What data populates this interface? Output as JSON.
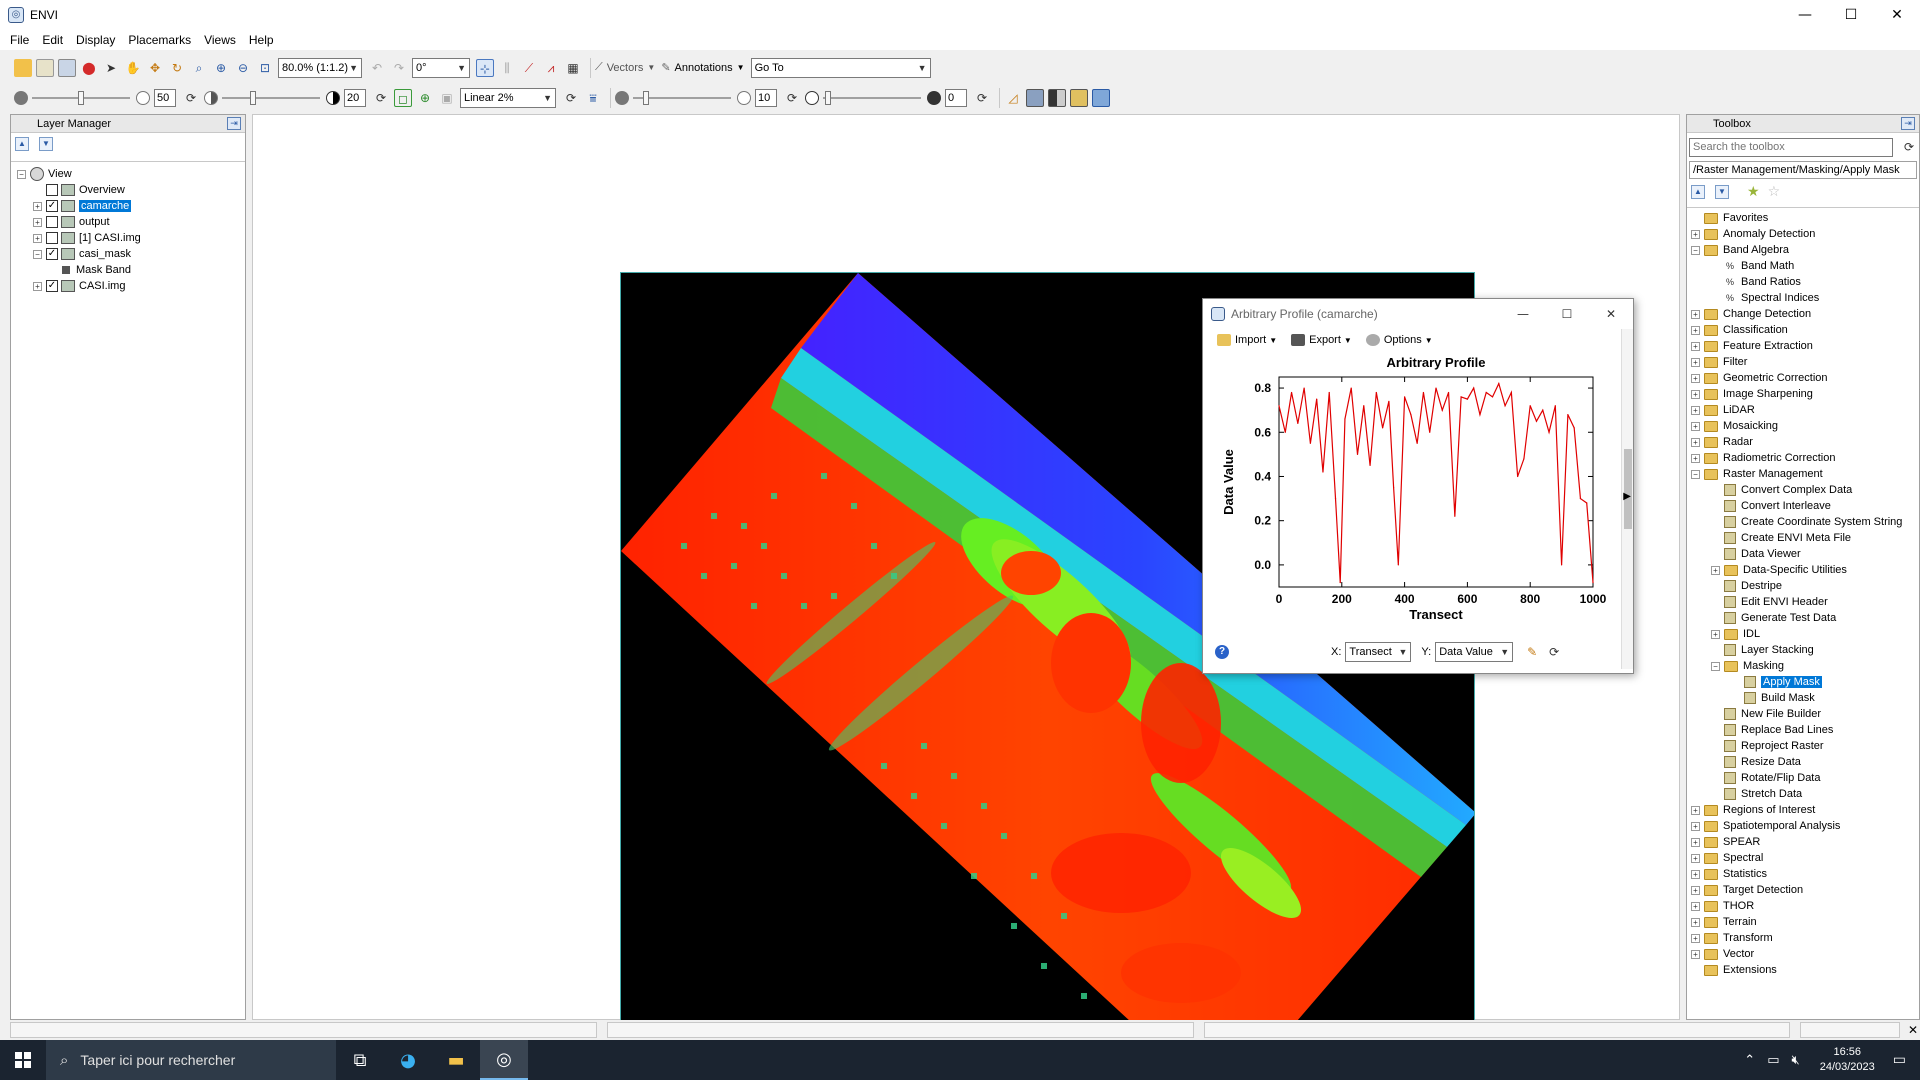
{
  "window": {
    "title": "ENVI",
    "minimize": "—",
    "maximize": "☐",
    "close": "✕"
  },
  "menu": [
    "File",
    "Edit",
    "Display",
    "Placemarks",
    "Views",
    "Help"
  ],
  "toolbar1": {
    "zoom_value": "80.0% (1:1.2)",
    "rotation_value": "0°",
    "vectors_label": "Vectors",
    "annotations_label": "Annotations",
    "goto_value": "Go To"
  },
  "toolbar2": {
    "brightness": "50",
    "contrast": "20",
    "stretch_value": "Linear 2%",
    "sharpen": "10",
    "transparency": "0"
  },
  "layer_manager": {
    "title": "Layer Manager",
    "items": [
      {
        "label": "View",
        "checked": null,
        "expander": "−",
        "indent": 0
      },
      {
        "label": "Overview",
        "checked": false,
        "expander": "",
        "indent": 1
      },
      {
        "label": "camarche",
        "checked": true,
        "expander": "+",
        "indent": 1,
        "selected": true
      },
      {
        "label": "output",
        "checked": false,
        "expander": "+",
        "indent": 1
      },
      {
        "label": "[1] CASI.img",
        "checked": false,
        "expander": "+",
        "indent": 1
      },
      {
        "label": "casi_mask",
        "checked": true,
        "expander": "−",
        "indent": 1
      },
      {
        "label": "Mask Band",
        "checked": null,
        "expander": "",
        "indent": 2
      },
      {
        "label": "CASI.img",
        "checked": true,
        "expander": "+",
        "indent": 1
      }
    ]
  },
  "profile_window": {
    "title": "Arbitrary Profile  (camarche)",
    "menu": {
      "import": "Import",
      "export": "Export",
      "options": "Options"
    },
    "x_label": "X:",
    "x_select": "Transect",
    "y_label": "Y:",
    "y_select": "Data Value",
    "help": "?"
  },
  "chart_data": {
    "type": "line",
    "title": "Arbitrary Profile",
    "xlabel": "Transect",
    "ylabel": "Data Value",
    "xlim": [
      0,
      1000
    ],
    "ylim": [
      -0.1,
      0.85
    ],
    "xticks": [
      "0",
      "200",
      "400",
      "600",
      "800",
      "1000"
    ],
    "yticks": [
      "0.0",
      "0.2",
      "0.4",
      "0.6",
      "0.8"
    ],
    "color": "#e00000",
    "x": [
      0,
      20,
      40,
      60,
      80,
      100,
      120,
      140,
      160,
      180,
      195,
      210,
      230,
      250,
      270,
      290,
      310,
      330,
      350,
      365,
      380,
      400,
      420,
      440,
      460,
      480,
      500,
      520,
      540,
      560,
      580,
      600,
      620,
      640,
      660,
      680,
      700,
      720,
      740,
      760,
      780,
      800,
      820,
      840,
      860,
      880,
      900,
      920,
      940,
      960,
      980,
      1000
    ],
    "y": [
      0.72,
      0.6,
      0.78,
      0.64,
      0.8,
      0.55,
      0.75,
      0.42,
      0.78,
      0.3,
      -0.08,
      0.66,
      0.8,
      0.5,
      0.72,
      0.45,
      0.78,
      0.62,
      0.74,
      0.35,
      0.0,
      0.76,
      0.68,
      0.55,
      0.78,
      0.6,
      0.8,
      0.7,
      0.78,
      0.22,
      0.76,
      0.75,
      0.8,
      0.68,
      0.78,
      0.76,
      0.82,
      0.72,
      0.78,
      0.4,
      0.48,
      0.72,
      0.65,
      0.7,
      0.6,
      0.72,
      0.0,
      0.68,
      0.62,
      0.3,
      0.28,
      -0.08
    ]
  },
  "toolbox": {
    "title": "Toolbox",
    "search_placeholder": "Search the toolbox",
    "path": "/Raster Management/Masking/Apply Mask",
    "items": [
      {
        "label": "Favorites",
        "type": "folder",
        "indent": 0,
        "expander": ""
      },
      {
        "label": "Anomaly Detection",
        "type": "folder",
        "indent": 0,
        "expander": "+"
      },
      {
        "label": "Band Algebra",
        "type": "folder",
        "indent": 0,
        "expander": "−"
      },
      {
        "label": "Band Math",
        "type": "bm",
        "indent": 1,
        "expander": ""
      },
      {
        "label": "Band Ratios",
        "type": "bm",
        "indent": 1,
        "expander": ""
      },
      {
        "label": "Spectral Indices",
        "type": "bm",
        "indent": 1,
        "expander": ""
      },
      {
        "label": "Change Detection",
        "type": "folder",
        "indent": 0,
        "expander": "+"
      },
      {
        "label": "Classification",
        "type": "folder",
        "indent": 0,
        "expander": "+"
      },
      {
        "label": "Feature Extraction",
        "type": "folder",
        "indent": 0,
        "expander": "+"
      },
      {
        "label": "Filter",
        "type": "folder",
        "indent": 0,
        "expander": "+"
      },
      {
        "label": "Geometric Correction",
        "type": "folder",
        "indent": 0,
        "expander": "+"
      },
      {
        "label": "Image Sharpening",
        "type": "folder",
        "indent": 0,
        "expander": "+"
      },
      {
        "label": "LiDAR",
        "type": "folder",
        "indent": 0,
        "expander": "+"
      },
      {
        "label": "Mosaicking",
        "type": "folder",
        "indent": 0,
        "expander": "+"
      },
      {
        "label": "Radar",
        "type": "folder",
        "indent": 0,
        "expander": "+"
      },
      {
        "label": "Radiometric Correction",
        "type": "folder",
        "indent": 0,
        "expander": "+"
      },
      {
        "label": "Raster Management",
        "type": "folder",
        "indent": 0,
        "expander": "−"
      },
      {
        "label": "Convert Complex Data",
        "type": "tool",
        "indent": 1,
        "expander": ""
      },
      {
        "label": "Convert Interleave",
        "type": "tool",
        "indent": 1,
        "expander": ""
      },
      {
        "label": "Create Coordinate System String",
        "type": "tool",
        "indent": 1,
        "expander": ""
      },
      {
        "label": "Create ENVI Meta File",
        "type": "tool",
        "indent": 1,
        "expander": ""
      },
      {
        "label": "Data Viewer",
        "type": "tool",
        "indent": 1,
        "expander": ""
      },
      {
        "label": "Data-Specific Utilities",
        "type": "folder",
        "indent": 1,
        "expander": "+"
      },
      {
        "label": "Destripe",
        "type": "tool",
        "indent": 1,
        "expander": ""
      },
      {
        "label": "Edit ENVI Header",
        "type": "tool",
        "indent": 1,
        "expander": ""
      },
      {
        "label": "Generate Test Data",
        "type": "tool",
        "indent": 1,
        "expander": ""
      },
      {
        "label": "IDL",
        "type": "folder",
        "indent": 1,
        "expander": "+"
      },
      {
        "label": "Layer Stacking",
        "type": "tool",
        "indent": 1,
        "expander": ""
      },
      {
        "label": "Masking",
        "type": "folder",
        "indent": 1,
        "expander": "−"
      },
      {
        "label": "Apply Mask",
        "type": "tool",
        "indent": 2,
        "expander": "",
        "selected": true
      },
      {
        "label": "Build Mask",
        "type": "tool",
        "indent": 2,
        "expander": ""
      },
      {
        "label": "New File Builder",
        "type": "tool",
        "indent": 1,
        "expander": ""
      },
      {
        "label": "Replace Bad Lines",
        "type": "tool",
        "indent": 1,
        "expander": ""
      },
      {
        "label": "Reproject Raster",
        "type": "tool",
        "indent": 1,
        "expander": ""
      },
      {
        "label": "Resize Data",
        "type": "tool",
        "indent": 1,
        "expander": ""
      },
      {
        "label": "Rotate/Flip Data",
        "type": "tool",
        "indent": 1,
        "expander": ""
      },
      {
        "label": "Stretch Data",
        "type": "tool",
        "indent": 1,
        "expander": ""
      },
      {
        "label": "Regions of Interest",
        "type": "folder",
        "indent": 0,
        "expander": "+"
      },
      {
        "label": "Spatiotemporal Analysis",
        "type": "folder",
        "indent": 0,
        "expander": "+"
      },
      {
        "label": "SPEAR",
        "type": "folder",
        "indent": 0,
        "expander": "+"
      },
      {
        "label": "Spectral",
        "type": "folder",
        "indent": 0,
        "expander": "+"
      },
      {
        "label": "Statistics",
        "type": "folder",
        "indent": 0,
        "expander": "+"
      },
      {
        "label": "Target Detection",
        "type": "folder",
        "indent": 0,
        "expander": "+"
      },
      {
        "label": "THOR",
        "type": "folder",
        "indent": 0,
        "expander": "+"
      },
      {
        "label": "Terrain",
        "type": "folder",
        "indent": 0,
        "expander": "+"
      },
      {
        "label": "Transform",
        "type": "folder",
        "indent": 0,
        "expander": "+"
      },
      {
        "label": "Vector",
        "type": "folder",
        "indent": 0,
        "expander": "+"
      },
      {
        "label": "Extensions",
        "type": "folder",
        "indent": 0,
        "expander": ""
      }
    ]
  },
  "taskbar": {
    "search_placeholder": "Taper ici pour rechercher",
    "time": "16:56",
    "date": "24/03/2023"
  }
}
